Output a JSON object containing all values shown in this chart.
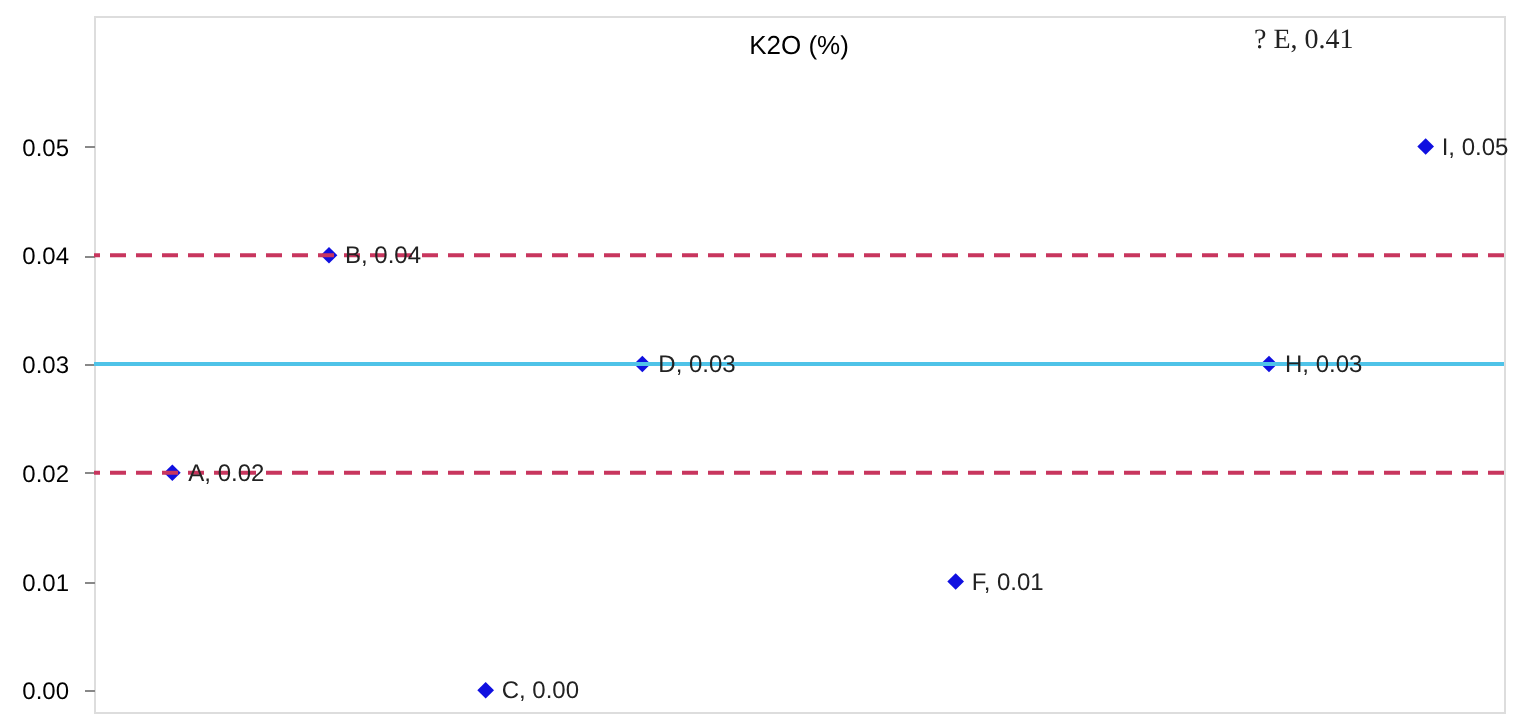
{
  "chart_data": {
    "type": "scatter",
    "title": "K2O (%)",
    "categories": [
      null,
      null,
      null,
      null,
      null,
      null,
      null,
      null,
      null
    ],
    "series": [
      {
        "color": "#1010e0",
        "values": [
          0.02,
          0.04,
          0.0,
          0.03,
          null,
          0.01,
          null,
          0.03,
          0.05
        ],
        "value_labels": [
          "A, 0.02",
          "B, 0.04",
          "C, 0.00",
          "D, 0.03",
          null,
          "F, 0.01",
          null,
          "H, 0.03",
          "I, 0.05"
        ]
      }
    ],
    "marker": "diamond",
    "ylim": [
      -0.002,
      0.062
    ],
    "yticks": [
      {
        "value": 0,
        "label": "0.00"
      },
      {
        "value": 0.01,
        "label": "0.01"
      },
      {
        "value": 0.02,
        "label": "0.02"
      },
      {
        "value": 0.03,
        "label": "0.03"
      },
      {
        "value": 0.04,
        "label": "0.04"
      },
      {
        "value": 0.05,
        "label": "0.05"
      }
    ],
    "ref_lines": [
      {
        "axis": "y",
        "value": 0.04,
        "color": "#c8365e",
        "line_style": "dashed"
      },
      {
        "axis": "y",
        "value": 0.03,
        "color": "#4fc3e8",
        "line_style": "solid"
      },
      {
        "axis": "y",
        "value": 0.02,
        "color": "#c8365e",
        "line_style": "dashed"
      }
    ],
    "annotations": [
      "? E, 0.41"
    ],
    "tick_labels": "y",
    "grid": false
  }
}
